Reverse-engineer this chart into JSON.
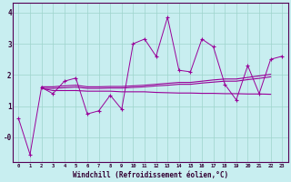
{
  "xlabel": "Windchill (Refroidissement éolien,°C)",
  "xlim": [
    -0.5,
    23.5
  ],
  "ylim": [
    -0.8,
    4.3
  ],
  "yticks": [
    0,
    1,
    2,
    3,
    4
  ],
  "ytick_labels": [
    "-0",
    "1",
    "2",
    "3",
    "4"
  ],
  "background_color": "#c8eef0",
  "grid_color": "#9dd4cc",
  "line_color": "#990099",
  "zigzag_x": [
    0,
    1,
    2,
    3,
    4,
    5,
    6,
    7,
    8,
    9,
    10,
    11,
    12,
    13,
    14,
    15,
    16,
    17,
    18,
    19,
    20,
    21,
    22,
    23
  ],
  "zigzag_y": [
    0.6,
    -0.55,
    1.6,
    1.4,
    1.8,
    1.9,
    0.75,
    0.85,
    1.35,
    0.9,
    3.0,
    3.15,
    2.6,
    3.85,
    2.15,
    2.1,
    3.15,
    2.9,
    1.7,
    1.2,
    2.3,
    1.4,
    2.5,
    2.6
  ],
  "upper_line_x": [
    2,
    3,
    4,
    5,
    6,
    7,
    8,
    9,
    10,
    11,
    12,
    13,
    14,
    15,
    16,
    17,
    18,
    19,
    20,
    21,
    22
  ],
  "upper_line_y": [
    1.62,
    1.62,
    1.65,
    1.67,
    1.62,
    1.62,
    1.63,
    1.63,
    1.65,
    1.67,
    1.7,
    1.73,
    1.76,
    1.76,
    1.8,
    1.84,
    1.87,
    1.87,
    1.92,
    1.97,
    2.02
  ],
  "mid_line_x": [
    2,
    3,
    4,
    5,
    6,
    7,
    8,
    9,
    10,
    11,
    12,
    13,
    14,
    15,
    16,
    17,
    18,
    19,
    20,
    21,
    22
  ],
  "mid_line_y": [
    1.57,
    1.57,
    1.59,
    1.61,
    1.57,
    1.57,
    1.58,
    1.58,
    1.6,
    1.62,
    1.65,
    1.67,
    1.7,
    1.7,
    1.74,
    1.77,
    1.8,
    1.8,
    1.85,
    1.89,
    1.94
  ],
  "lower_line_x": [
    2,
    3,
    4,
    5,
    6,
    7,
    8,
    9,
    10,
    11,
    12,
    13,
    14,
    15,
    16,
    17,
    18,
    19,
    20,
    21,
    22
  ],
  "lower_line_y": [
    1.57,
    1.5,
    1.5,
    1.5,
    1.48,
    1.48,
    1.48,
    1.46,
    1.46,
    1.46,
    1.44,
    1.43,
    1.42,
    1.42,
    1.41,
    1.41,
    1.4,
    1.4,
    1.39,
    1.39,
    1.38
  ]
}
